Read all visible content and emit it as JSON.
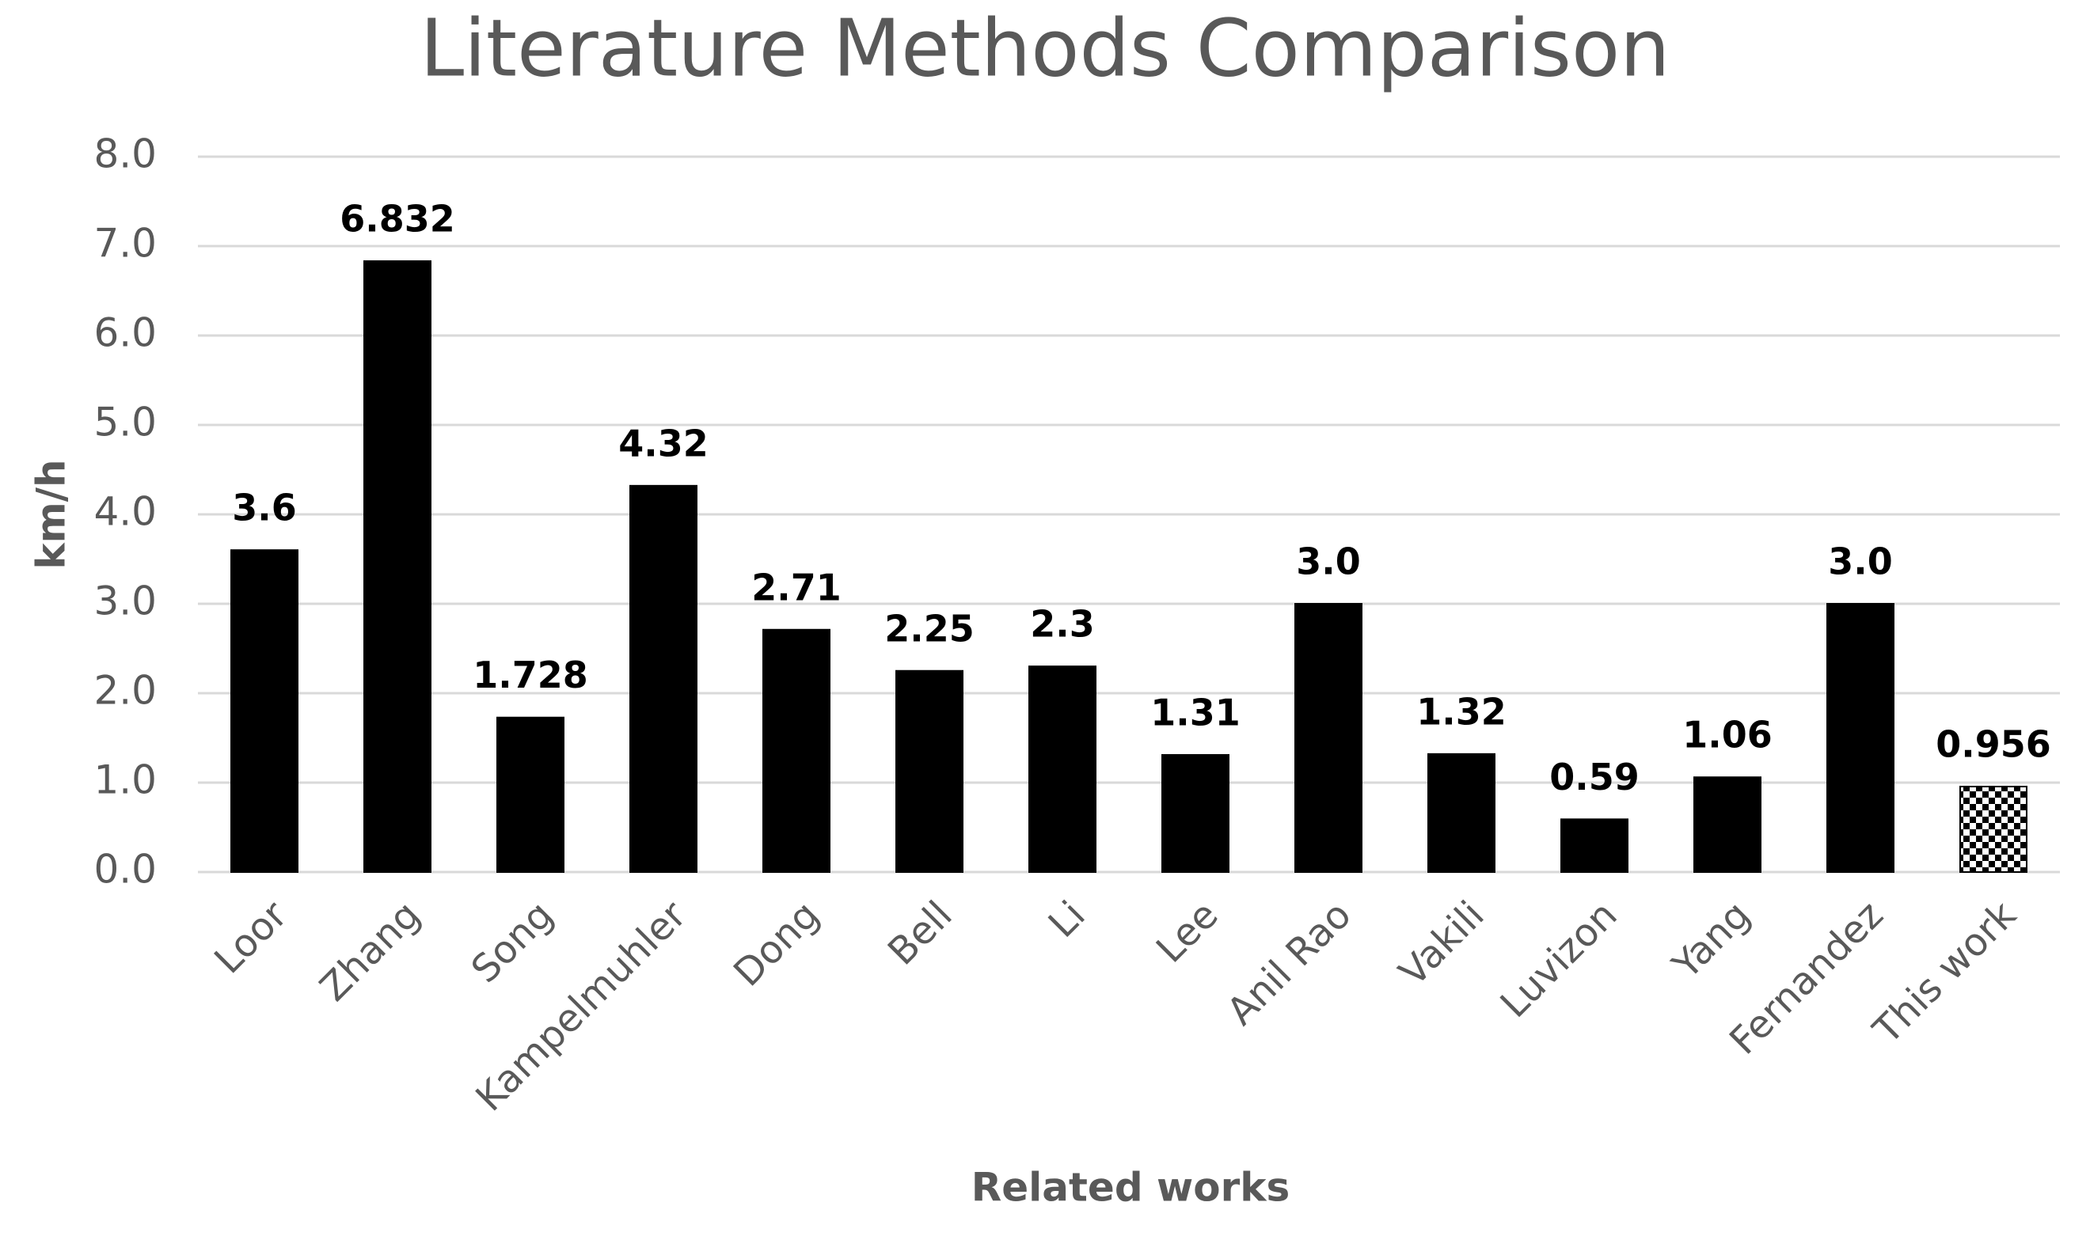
{
  "chart_data": {
    "type": "bar",
    "title": "Literature Methods Comparison",
    "x_label": "Related works",
    "y_label": "km/h",
    "categories": [
      "Loor",
      "Zhang",
      "Song",
      "Kampelmuhler",
      "Dong",
      "Bell",
      "Li",
      "Lee",
      "Anil Rao",
      "Vakili",
      "Luvizon",
      "Yang",
      "Fernandez",
      "This work"
    ],
    "values": [
      3.6,
      6.832,
      1.728,
      4.32,
      2.71,
      2.25,
      2.3,
      1.31,
      3,
      1.32,
      0.59,
      1.06,
      3,
      0.956
    ],
    "value_labels": [
      "3.6",
      "6.832",
      "1.728",
      "4.32",
      "2.71",
      "2.25",
      "2.3",
      "1.31",
      "3.0",
      "1.32",
      "0.59",
      "1.06",
      "3.0",
      "0.956"
    ],
    "patterns": [
      "solid",
      "solid",
      "solid",
      "solid",
      "solid",
      "solid",
      "solid",
      "solid",
      "solid",
      "solid",
      "solid",
      "solid",
      "solid",
      "checker"
    ],
    "color": "#000000",
    "ylim": [
      0,
      8
    ],
    "yticks": [
      {
        "value": 0,
        "label": "0.0"
      },
      {
        "value": 1,
        "label": "1.0"
      },
      {
        "value": 2,
        "label": "2.0"
      },
      {
        "value": 3,
        "label": "3.0"
      },
      {
        "value": 4,
        "label": "4.0"
      },
      {
        "value": 5,
        "label": "5.0"
      },
      {
        "value": 6,
        "label": "6.0"
      },
      {
        "value": 7,
        "label": "7.0"
      },
      {
        "value": 8,
        "label": "8.0"
      }
    ],
    "grid": true
  }
}
